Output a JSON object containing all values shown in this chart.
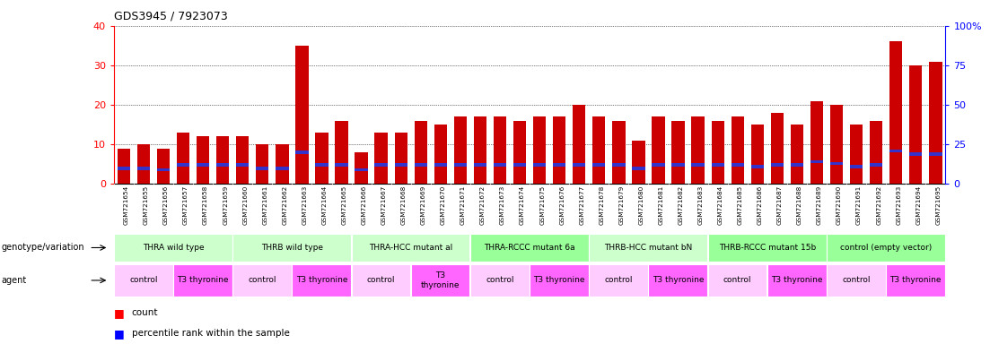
{
  "title": "GDS3945 / 7923073",
  "samples": [
    "GSM721654",
    "GSM721655",
    "GSM721656",
    "GSM721657",
    "GSM721658",
    "GSM721659",
    "GSM721660",
    "GSM721661",
    "GSM721662",
    "GSM721663",
    "GSM721664",
    "GSM721665",
    "GSM721666",
    "GSM721667",
    "GSM721668",
    "GSM721669",
    "GSM721670",
    "GSM721671",
    "GSM721672",
    "GSM721673",
    "GSM721674",
    "GSM721675",
    "GSM721676",
    "GSM721677",
    "GSM721678",
    "GSM721679",
    "GSM721680",
    "GSM721681",
    "GSM721682",
    "GSM721683",
    "GSM721684",
    "GSM721685",
    "GSM721686",
    "GSM721687",
    "GSM721688",
    "GSM721689",
    "GSM721690",
    "GSM721691",
    "GSM721692",
    "GSM721693",
    "GSM721694",
    "GSM721695"
  ],
  "counts": [
    9,
    10,
    9,
    13,
    12,
    12,
    12,
    10,
    10,
    35,
    13,
    16,
    8,
    13,
    13,
    16,
    15,
    17,
    17,
    17,
    16,
    17,
    17,
    20,
    17,
    16,
    11,
    17,
    16,
    17,
    16,
    17,
    15,
    18,
    15,
    21,
    20,
    15,
    16,
    36,
    30,
    31
  ],
  "percentile": [
    9,
    9,
    8,
    11,
    11,
    11,
    11,
    9,
    9,
    19,
    11,
    11,
    8,
    11,
    11,
    11,
    11,
    11,
    11,
    11,
    11,
    11,
    11,
    11,
    11,
    11,
    9,
    11,
    11,
    11,
    11,
    11,
    10,
    11,
    11,
    13,
    12,
    10,
    11,
    20,
    18,
    18
  ],
  "genotype_groups": [
    {
      "label": "THRA wild type",
      "start": 0,
      "end": 5,
      "color": "#ccffcc"
    },
    {
      "label": "THRB wild type",
      "start": 6,
      "end": 11,
      "color": "#ccffcc"
    },
    {
      "label": "THRA-HCC mutant al",
      "start": 12,
      "end": 17,
      "color": "#ccffcc"
    },
    {
      "label": "THRA-RCCC mutant 6a",
      "start": 18,
      "end": 23,
      "color": "#99ff99"
    },
    {
      "label": "THRB-HCC mutant bN",
      "start": 24,
      "end": 29,
      "color": "#ccffcc"
    },
    {
      "label": "THRB-RCCC mutant 15b",
      "start": 30,
      "end": 35,
      "color": "#99ff99"
    },
    {
      "label": "control (empty vector)",
      "start": 36,
      "end": 41,
      "color": "#99ff99"
    }
  ],
  "agent_groups": [
    {
      "label": "control",
      "start": 0,
      "end": 2,
      "color": "#ffccff"
    },
    {
      "label": "T3 thyronine",
      "start": 3,
      "end": 5,
      "color": "#ff66ff"
    },
    {
      "label": "control",
      "start": 6,
      "end": 8,
      "color": "#ffccff"
    },
    {
      "label": "T3 thyronine",
      "start": 9,
      "end": 11,
      "color": "#ff66ff"
    },
    {
      "label": "control",
      "start": 12,
      "end": 14,
      "color": "#ffccff"
    },
    {
      "label": "T3\nthyronine",
      "start": 15,
      "end": 17,
      "color": "#ff66ff"
    },
    {
      "label": "control",
      "start": 18,
      "end": 20,
      "color": "#ffccff"
    },
    {
      "label": "T3 thyronine",
      "start": 21,
      "end": 23,
      "color": "#ff66ff"
    },
    {
      "label": "control",
      "start": 24,
      "end": 26,
      "color": "#ffccff"
    },
    {
      "label": "T3 thyronine",
      "start": 27,
      "end": 29,
      "color": "#ff66ff"
    },
    {
      "label": "control",
      "start": 30,
      "end": 32,
      "color": "#ffccff"
    },
    {
      "label": "T3 thyronine",
      "start": 33,
      "end": 35,
      "color": "#ff66ff"
    },
    {
      "label": "control",
      "start": 36,
      "end": 38,
      "color": "#ffccff"
    },
    {
      "label": "T3 thyronine",
      "start": 39,
      "end": 41,
      "color": "#ff66ff"
    }
  ],
  "bar_color": "#cc0000",
  "percentile_color": "#3333cc",
  "left_ylim": [
    0,
    40
  ],
  "right_ylim": [
    0,
    100
  ],
  "left_yticks": [
    0,
    10,
    20,
    30,
    40
  ],
  "right_yticks": [
    0,
    25,
    50,
    75,
    100
  ],
  "right_yticklabels": [
    "0",
    "25",
    "50",
    "75",
    "100%"
  ],
  "background_color": "#ffffff",
  "plot_bg_color": "#ffffff",
  "grid_color": "#000000",
  "fig_width": 11.03,
  "fig_height": 3.84,
  "dpi": 100
}
